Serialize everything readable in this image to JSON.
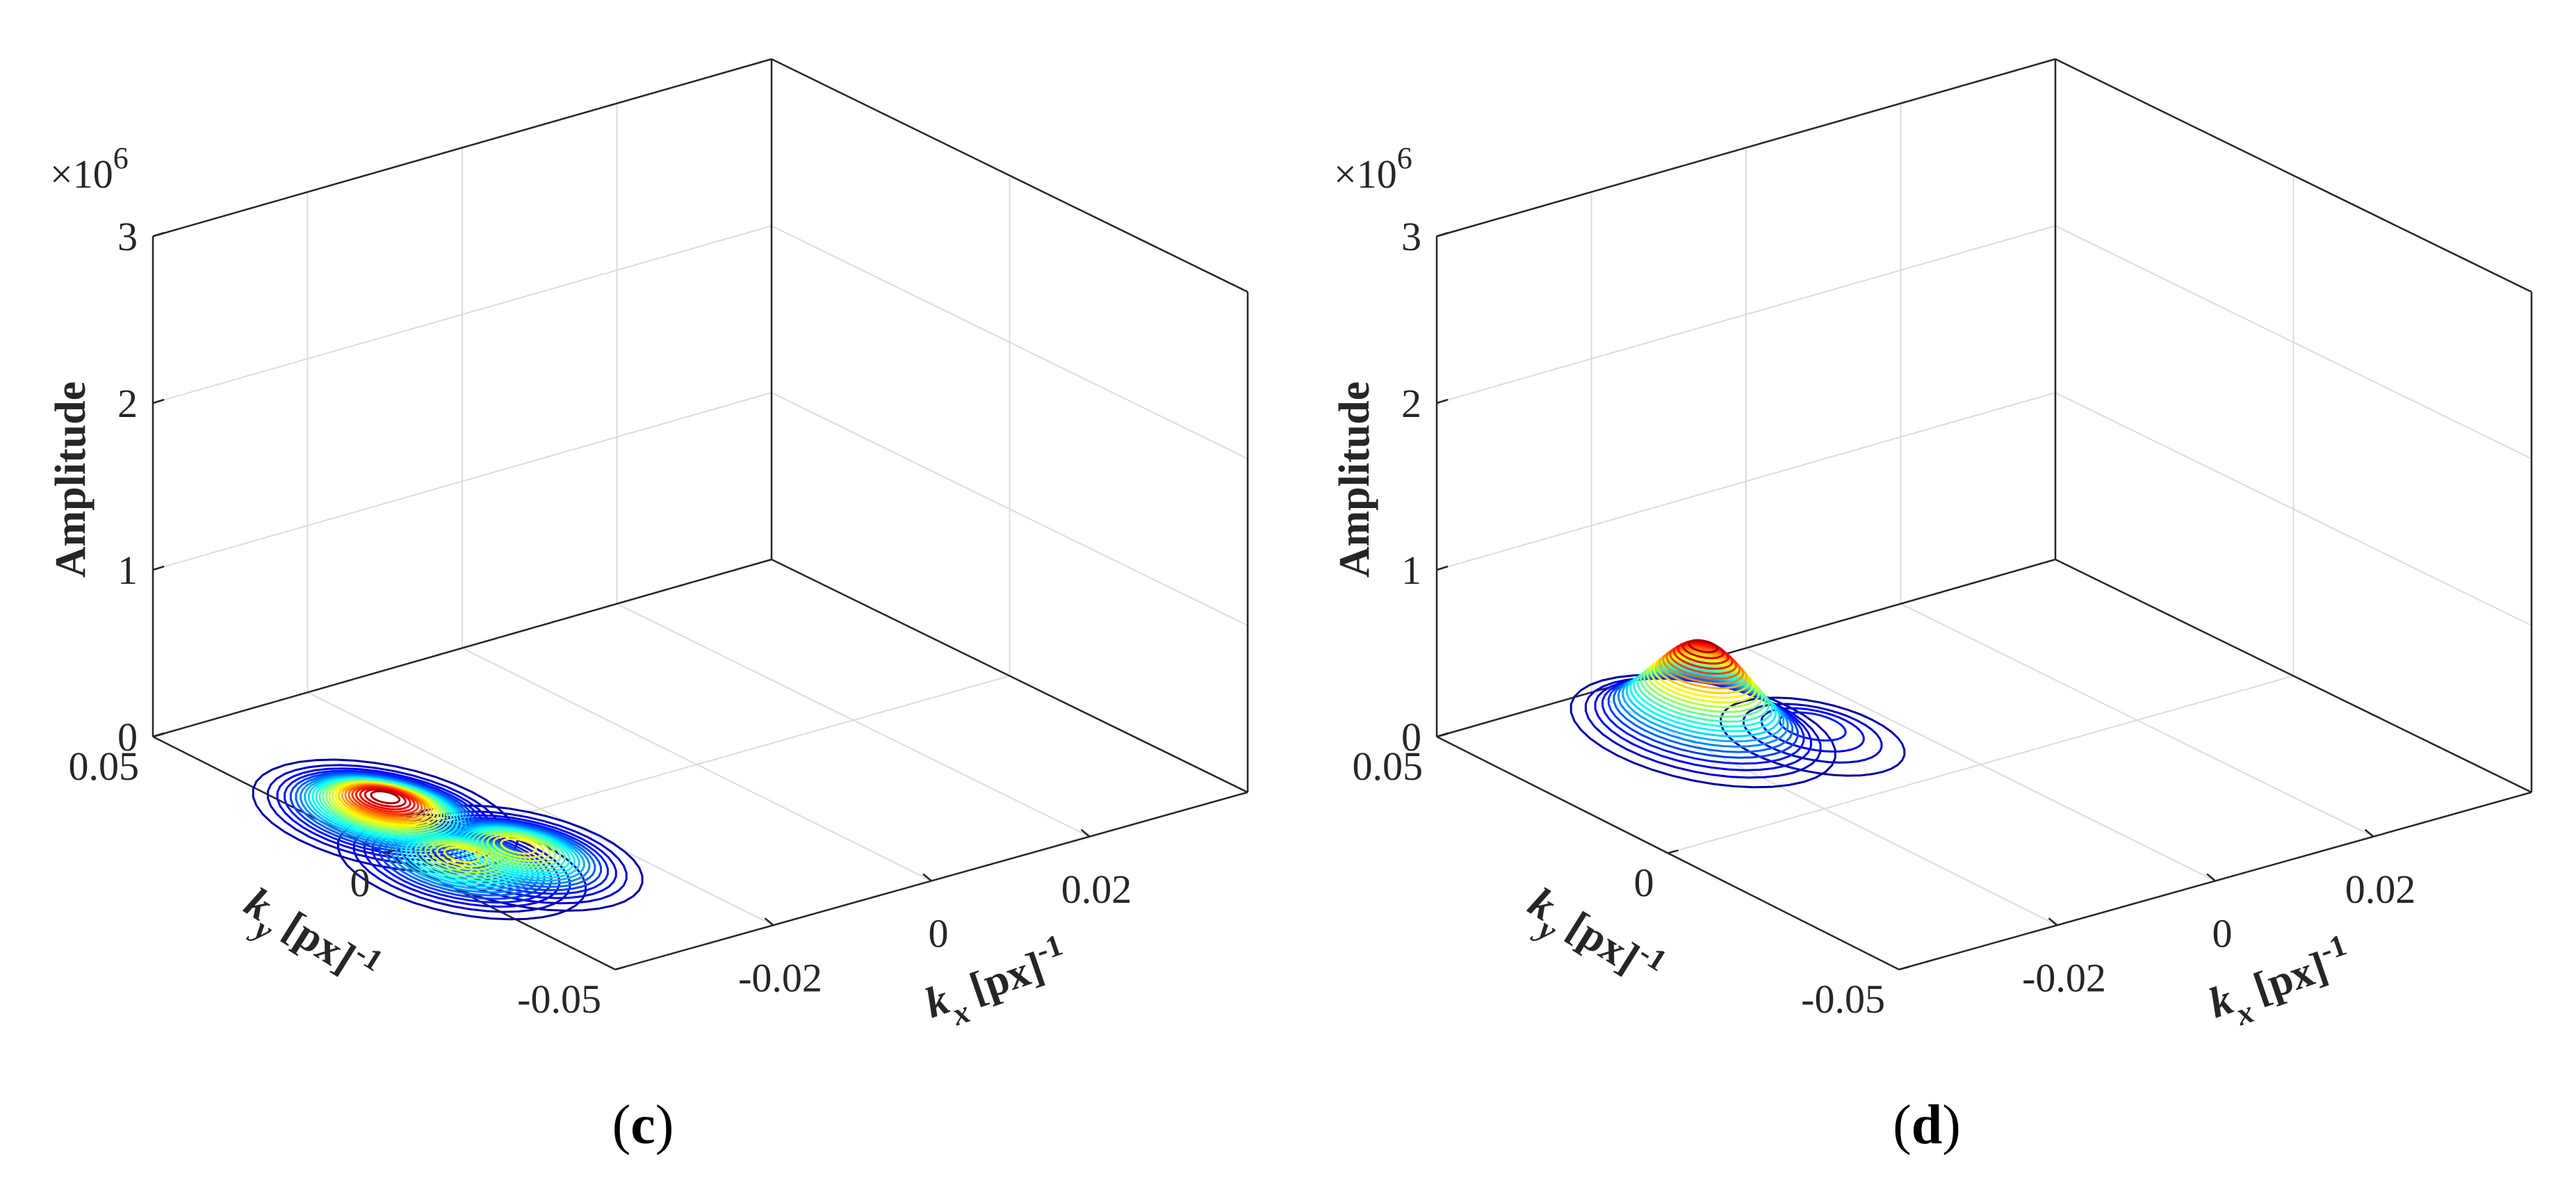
{
  "figure": {
    "panels": [
      {
        "caption_open": "(",
        "caption_letter": "c",
        "caption_close": ")",
        "exponent_label": "×10",
        "exponent_power": "6",
        "z_label": "Amplitude",
        "x_label_main": "k",
        "x_label_sub": "x",
        "x_label_unit": "[px]",
        "x_label_sup": "-1",
        "y_label_main": "k",
        "y_label_sub": "y",
        "y_label_unit": "[px]",
        "y_label_sup": "-1",
        "z_ticks": [
          "0",
          "1",
          "2",
          "3"
        ],
        "y_ticks": [
          "0.05",
          "0",
          "-0.05"
        ],
        "x_ticks": [
          "-0.02",
          "0",
          "0.02"
        ]
      },
      {
        "caption_open": "(",
        "caption_letter": "d",
        "caption_close": ")",
        "exponent_label": "×10",
        "exponent_power": "6",
        "z_label": "Amplitude",
        "x_label_main": "k",
        "x_label_sub": "x",
        "x_label_unit": "[px]",
        "x_label_sup": "-1",
        "y_label_main": "k",
        "y_label_sub": "y",
        "y_label_unit": "[px]",
        "y_label_sup": "-1",
        "z_ticks": [
          "0",
          "1",
          "2",
          "3"
        ],
        "y_ticks": [
          "0.05",
          "0",
          "-0.05"
        ],
        "x_ticks": [
          "-0.02",
          "0",
          "0.02"
        ]
      }
    ]
  },
  "chart_data": [
    {
      "type": "contour3",
      "panel": "c",
      "zlabel": "Amplitude",
      "z_multiplier": 1000000,
      "xlabel": "k_x [px]^-1",
      "ylabel": "k_y [px]^-1",
      "xlim": [
        -0.04,
        0.04
      ],
      "ylim": [
        -0.05,
        0.05
      ],
      "zlim": [
        0,
        3
      ],
      "zticks": [
        0,
        1,
        2,
        3
      ],
      "xticks": [
        -0.02,
        0,
        0.02
      ],
      "yticks": [
        -0.05,
        0,
        0.05
      ],
      "grid": true,
      "colormap": "jet",
      "peaks": [
        {
          "kx": -0.034,
          "ky": 0.01,
          "amplitude": 0.12
        },
        {
          "kx": -0.036,
          "ky": -0.01,
          "amplitude": 0.08
        },
        {
          "kx": -0.03,
          "ky": -0.012,
          "amplitude": 0.08
        }
      ]
    },
    {
      "type": "contour3",
      "panel": "d",
      "zlabel": "Amplitude",
      "z_multiplier": 1000000,
      "xlabel": "k_x [px]^-1",
      "ylabel": "k_y [px]^-1",
      "xlim": [
        -0.04,
        0.04
      ],
      "ylim": [
        -0.05,
        0.05
      ],
      "zlim": [
        0,
        3
      ],
      "zticks": [
        0,
        1,
        2,
        3
      ],
      "xticks": [
        -0.02,
        0,
        0.02
      ],
      "yticks": [
        -0.05,
        0,
        0.05
      ],
      "grid": true,
      "colormap": "jet",
      "peaks": [
        {
          "kx": -0.018,
          "ky": 0.03,
          "amplitude": 0.55
        },
        {
          "kx": -0.01,
          "ky": 0.02,
          "amplitude": 0.1
        }
      ]
    }
  ],
  "colors": {
    "axis": "#262626",
    "grid": "#dcdcdc",
    "contour_low": "#1010a0",
    "contour_high": "#e00000"
  }
}
